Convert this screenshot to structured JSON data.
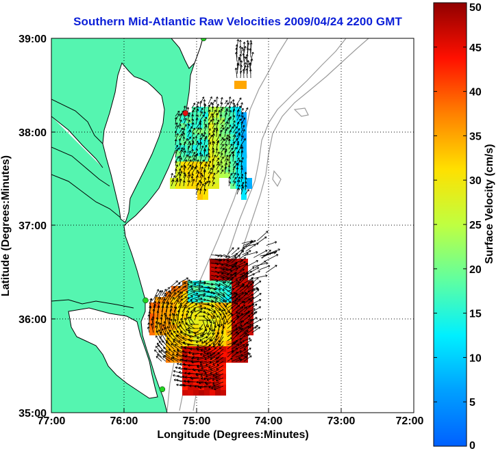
{
  "title": "Southern Mid-Atlantic Raw Velocities 2009/04/24 2200 GMT",
  "x_axis": {
    "label": "Longitude (Degrees:Minutes)",
    "ticks": [
      "77:00",
      "76:00",
      "75:00",
      "74:00",
      "73:00",
      "72:00"
    ]
  },
  "y_axis": {
    "label": "Latitude (Degrees:Minutes)",
    "ticks": [
      "39:00",
      "38:00",
      "37:00",
      "36:00",
      "35:00"
    ]
  },
  "colorbar": {
    "label": "Surface Velocity (cm/s)",
    "ticks": [
      "50",
      "45",
      "40",
      "35",
      "30",
      "25",
      "20",
      "15",
      "10",
      "5",
      "0"
    ],
    "range": [
      0,
      50
    ],
    "colormap": "jet"
  },
  "colors": {
    "title": "#0a1ed8",
    "land": "#55f5b0",
    "water": "#ffffff",
    "coastline": "#000000",
    "bathymetry": "#9a9a9a",
    "grid": "#000000",
    "site_marker": "#22d422",
    "site_marker_alt": "#e01010"
  },
  "map": {
    "lon_range": [
      -77,
      -72
    ],
    "lat_range": [
      35,
      39
    ],
    "grid": "dotted",
    "sites": [
      {
        "lon": -74.9,
        "lat": 39.0,
        "color": "#22d422"
      },
      {
        "lon": -75.15,
        "lat": 38.2,
        "color": "#e01010"
      },
      {
        "lon": -75.7,
        "lat": 36.2,
        "color": "#22d422"
      },
      {
        "lon": -75.47,
        "lat": 35.25,
        "color": "#22d422"
      }
    ]
  }
}
